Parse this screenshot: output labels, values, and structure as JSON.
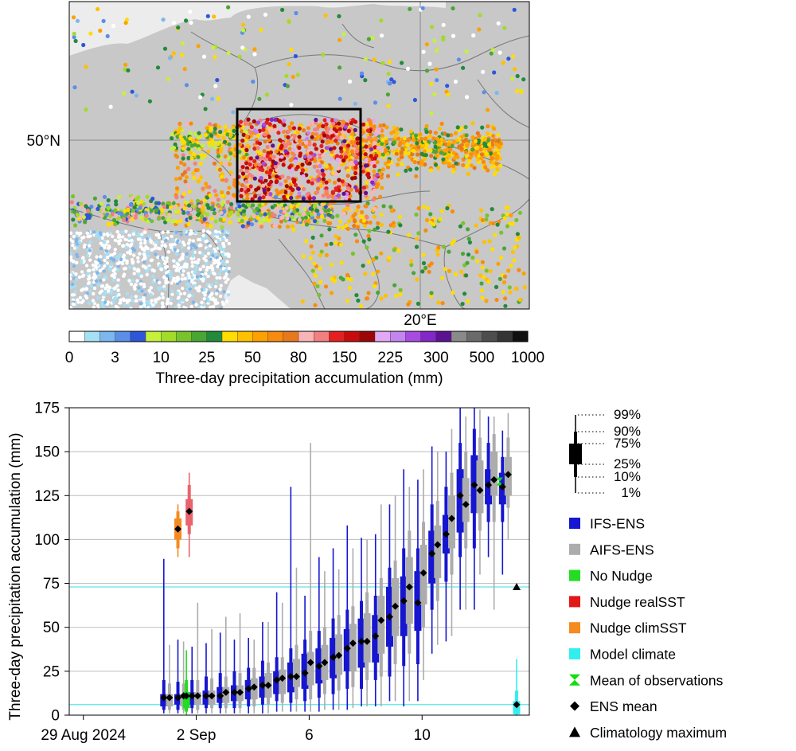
{
  "map": {
    "lat_label": "50°N",
    "lon_label": "20°E",
    "colorbar": {
      "title": "Three-day precipitation accumulation (mm)",
      "tick_labels": [
        "0",
        "3",
        "10",
        "25",
        "50",
        "80",
        "150",
        "225",
        "300",
        "500",
        "1000"
      ],
      "colors": [
        "#ffffff",
        "#a5e0f5",
        "#7db7ef",
        "#5a8ee8",
        "#2e56d8",
        "#c6f03c",
        "#a2db2a",
        "#78c32a",
        "#4aa634",
        "#238a3c",
        "#ffdd00",
        "#ffc000",
        "#fca100",
        "#f98a10",
        "#e8781c",
        "#f9b5b5",
        "#f28080",
        "#e42020",
        "#c80b0b",
        "#9c0606",
        "#e3a8f5",
        "#c684f0",
        "#a84be0",
        "#8426c8",
        "#5d1292",
        "#8a8a8a",
        "#6a6a6a",
        "#4e4e4e",
        "#353535",
        "#111111"
      ]
    }
  },
  "chart_data": {
    "type": "box",
    "ylabel": "Three-day precipitation accumulation (mm)",
    "ylim": [
      0,
      175
    ],
    "yticks": [
      0,
      25,
      50,
      75,
      100,
      125,
      150,
      175
    ],
    "xticks": [
      {
        "x": 0,
        "label": "29 Aug 2024"
      },
      {
        "x": 4,
        "label": "2 Sep"
      },
      {
        "x": 8,
        "label": "6"
      },
      {
        "x": 12,
        "label": "10"
      }
    ],
    "reference_lines": [
      73,
      6
    ],
    "legend_boxplot": [
      "99%",
      "90%",
      "75%",
      "25%",
      "10%",
      "1%"
    ],
    "legend": [
      {
        "label": "IFS-ENS",
        "color": "#1616d0",
        "marker": "square"
      },
      {
        "label": "AIFS-ENS",
        "color": "#acacac",
        "marker": "square"
      },
      {
        "label": "No Nudge",
        "color": "#22dd22",
        "marker": "square"
      },
      {
        "label": "Nudge realSST",
        "color": "#e01818",
        "marker": "square"
      },
      {
        "label": "Nudge climSST",
        "color": "#f58a1f",
        "marker": "square"
      },
      {
        "label": "Model climate",
        "color": "#33eeee",
        "marker": "square"
      },
      {
        "label": "Mean of observations",
        "color": "#11dd11",
        "marker": "hourglass"
      },
      {
        "label": "ENS mean",
        "color": "#000000",
        "marker": "diamond"
      },
      {
        "label": "Climatology maximum",
        "color": "#000000",
        "marker": "triangle"
      }
    ],
    "series": [
      {
        "name": "IFS-ENS",
        "color": "#1616d0",
        "boxes": [
          {
            "x": 2.85,
            "p1": 1,
            "p10": 3,
            "p25": 5,
            "p75": 12,
            "p90": 20,
            "p99": 89,
            "mean": 10
          },
          {
            "x": 3.35,
            "p1": 1,
            "p10": 3,
            "p25": 6,
            "p75": 12,
            "p90": 19,
            "p99": 43,
            "mean": 10
          },
          {
            "x": 3.85,
            "p1": 1,
            "p10": 4,
            "p25": 6,
            "p75": 13,
            "p90": 20,
            "p99": 39,
            "mean": 11
          },
          {
            "x": 4.35,
            "p1": 1,
            "p10": 4,
            "p25": 6,
            "p75": 14,
            "p90": 22,
            "p99": 41,
            "mean": 11
          },
          {
            "x": 4.85,
            "p1": 1,
            "p10": 4,
            "p25": 7,
            "p75": 16,
            "p90": 24,
            "p99": 47,
            "mean": 11
          },
          {
            "x": 5.35,
            "p1": 1,
            "p10": 4,
            "p25": 8,
            "p75": 17,
            "p90": 25,
            "p99": 43,
            "mean": 13
          },
          {
            "x": 5.85,
            "p1": 1,
            "p10": 5,
            "p25": 9,
            "p75": 20,
            "p90": 27,
            "p99": 44,
            "mean": 15
          },
          {
            "x": 6.35,
            "p1": 1,
            "p10": 6,
            "p25": 10,
            "p75": 22,
            "p90": 31,
            "p99": 53,
            "mean": 17
          },
          {
            "x": 6.85,
            "p1": 2,
            "p10": 8,
            "p25": 12,
            "p75": 25,
            "p90": 33,
            "p99": 70,
            "mean": 20
          },
          {
            "x": 7.35,
            "p1": 2,
            "p10": 7,
            "p25": 13,
            "p75": 30,
            "p90": 38,
            "p99": 130,
            "mean": 22
          },
          {
            "x": 7.85,
            "p1": 2,
            "p10": 8,
            "p25": 15,
            "p75": 35,
            "p90": 43,
            "p99": 68,
            "mean": 24
          },
          {
            "x": 8.35,
            "p1": 2,
            "p10": 10,
            "p25": 18,
            "p75": 38,
            "p90": 48,
            "p99": 90,
            "mean": 28
          },
          {
            "x": 8.85,
            "p1": 3,
            "p10": 12,
            "p25": 21,
            "p75": 44,
            "p90": 55,
            "p99": 95,
            "mean": 33
          },
          {
            "x": 9.35,
            "p1": 3,
            "p10": 15,
            "p25": 25,
            "p75": 49,
            "p90": 60,
            "p99": 108,
            "mean": 38
          },
          {
            "x": 9.85,
            "p1": 5,
            "p10": 15,
            "p25": 27,
            "p75": 55,
            "p90": 65,
            "p99": 101,
            "mean": 42
          },
          {
            "x": 10.35,
            "p1": 5,
            "p10": 20,
            "p25": 30,
            "p75": 57,
            "p90": 68,
            "p99": 103,
            "mean": 45
          },
          {
            "x": 10.85,
            "p1": 8,
            "p10": 22,
            "p25": 39,
            "p75": 73,
            "p90": 84,
            "p99": 120,
            "mean": 56
          },
          {
            "x": 11.35,
            "p1": 5,
            "p10": 28,
            "p25": 45,
            "p75": 79,
            "p90": 95,
            "p99": 140,
            "mean": 65
          },
          {
            "x": 11.85,
            "p1": 8,
            "p10": 29,
            "p25": 48,
            "p75": 82,
            "p90": 95,
            "p99": 134,
            "mean": 64
          },
          {
            "x": 12.35,
            "p1": 35,
            "p10": 60,
            "p25": 75,
            "p75": 105,
            "p90": 120,
            "p99": 153,
            "mean": 92
          },
          {
            "x": 12.85,
            "p1": 42,
            "p10": 76,
            "p25": 92,
            "p75": 114,
            "p90": 130,
            "p99": 150,
            "mean": 103
          },
          {
            "x": 13.35,
            "p1": 60,
            "p10": 90,
            "p25": 104,
            "p75": 140,
            "p90": 155,
            "p99": 175,
            "mean": 125
          },
          {
            "x": 13.85,
            "p1": 60,
            "p10": 95,
            "p25": 115,
            "p75": 148,
            "p90": 163,
            "p99": 175,
            "mean": 131
          },
          {
            "x": 14.35,
            "p1": 90,
            "p10": 110,
            "p25": 120,
            "p75": 140,
            "p90": 155,
            "p99": 170,
            "mean": 131
          },
          {
            "x": 14.85,
            "p1": 80,
            "p10": 110,
            "p25": 120,
            "p75": 138,
            "p90": 147,
            "p99": 162,
            "mean": 130
          }
        ]
      },
      {
        "name": "AIFS-ENS",
        "color": "#acacac",
        "boxes": [
          {
            "x": 3.05,
            "p1": 1,
            "p10": 3,
            "p25": 5,
            "p75": 12,
            "p90": 18,
            "p99": 40,
            "mean": 10
          },
          {
            "x": 3.55,
            "p1": 1,
            "p10": 3,
            "p25": 5,
            "p75": 12,
            "p90": 18,
            "p99": 42,
            "mean": 11
          },
          {
            "x": 4.05,
            "p1": 1,
            "p10": 3,
            "p25": 6,
            "p75": 13,
            "p90": 20,
            "p99": 64,
            "mean": 11
          },
          {
            "x": 4.55,
            "p1": 1,
            "p10": 4,
            "p25": 6,
            "p75": 14,
            "p90": 21,
            "p99": 49,
            "mean": 11
          },
          {
            "x": 5.05,
            "p1": 1,
            "p10": 4,
            "p25": 7,
            "p75": 16,
            "p90": 22,
            "p99": 56,
            "mean": 13
          },
          {
            "x": 5.55,
            "p1": 1,
            "p10": 4,
            "p25": 8,
            "p75": 17,
            "p90": 24,
            "p99": 58,
            "mean": 13
          },
          {
            "x": 6.05,
            "p1": 1,
            "p10": 5,
            "p25": 9,
            "p75": 21,
            "p90": 27,
            "p99": 43,
            "mean": 16
          },
          {
            "x": 6.55,
            "p1": 1,
            "p10": 6,
            "p25": 10,
            "p75": 24,
            "p90": 30,
            "p99": 53,
            "mean": 17
          },
          {
            "x": 7.05,
            "p1": 2,
            "p10": 7,
            "p25": 12,
            "p75": 26,
            "p90": 33,
            "p99": 64,
            "mean": 21
          },
          {
            "x": 7.55,
            "p1": 2,
            "p10": 9,
            "p25": 16,
            "p75": 32,
            "p90": 40,
            "p99": 84,
            "mean": 22
          },
          {
            "x": 8.05,
            "p1": 2,
            "p10": 9,
            "p25": 17,
            "p75": 36,
            "p90": 48,
            "p99": 155,
            "mean": 30
          },
          {
            "x": 8.55,
            "p1": 3,
            "p10": 12,
            "p25": 20,
            "p75": 40,
            "p90": 50,
            "p99": 82,
            "mean": 30
          },
          {
            "x": 9.05,
            "p1": 3,
            "p10": 14,
            "p25": 23,
            "p75": 46,
            "p90": 57,
            "p99": 83,
            "mean": 34
          },
          {
            "x": 9.55,
            "p1": 4,
            "p10": 16,
            "p25": 25,
            "p75": 52,
            "p90": 62,
            "p99": 95,
            "mean": 41
          },
          {
            "x": 10.05,
            "p1": 5,
            "p10": 20,
            "p25": 30,
            "p75": 58,
            "p90": 70,
            "p99": 100,
            "mean": 42
          },
          {
            "x": 10.55,
            "p1": 5,
            "p10": 22,
            "p25": 35,
            "p75": 68,
            "p90": 78,
            "p99": 120,
            "mean": 54
          },
          {
            "x": 11.05,
            "p1": 8,
            "p10": 29,
            "p25": 45,
            "p75": 78,
            "p90": 88,
            "p99": 125,
            "mean": 62
          },
          {
            "x": 11.55,
            "p1": 8,
            "p10": 35,
            "p25": 52,
            "p75": 90,
            "p90": 105,
            "p99": 130,
            "mean": 73
          },
          {
            "x": 12.05,
            "p1": 20,
            "p10": 50,
            "p25": 63,
            "p75": 97,
            "p90": 110,
            "p99": 140,
            "mean": 81
          },
          {
            "x": 12.55,
            "p1": 40,
            "p10": 65,
            "p25": 78,
            "p75": 108,
            "p90": 122,
            "p99": 150,
            "mean": 97
          },
          {
            "x": 13.05,
            "p1": 45,
            "p10": 80,
            "p25": 95,
            "p75": 125,
            "p90": 138,
            "p99": 163,
            "mean": 112
          },
          {
            "x": 13.55,
            "p1": 60,
            "p10": 95,
            "p25": 110,
            "p75": 135,
            "p90": 150,
            "p99": 170,
            "mean": 120
          },
          {
            "x": 14.05,
            "p1": 80,
            "p10": 105,
            "p25": 115,
            "p75": 145,
            "p90": 158,
            "p99": 174,
            "mean": 128
          },
          {
            "x": 14.55,
            "p1": 60,
            "p10": 110,
            "p25": 125,
            "p75": 150,
            "p90": 160,
            "p99": 170,
            "mean": 134
          },
          {
            "x": 15.05,
            "p1": 100,
            "p10": 118,
            "p25": 125,
            "p75": 147,
            "p90": 158,
            "p99": 172,
            "mean": 137
          }
        ]
      },
      {
        "name": "Nudge climSST",
        "color": "#f58a1f",
        "boxes": [
          {
            "x": 3.35,
            "p1": 90,
            "p10": 95,
            "p25": 100,
            "p75": 112,
            "p90": 116,
            "p99": 120,
            "mean": 106
          }
        ]
      },
      {
        "name": "Nudge realSST",
        "color": "#e8636b",
        "boxes": [
          {
            "x": 3.75,
            "p1": 90,
            "p10": 103,
            "p25": 108,
            "p75": 123,
            "p90": 131,
            "p99": 138,
            "mean": 116
          }
        ]
      },
      {
        "name": "No Nudge",
        "color": "#22dd22",
        "boxes": [
          {
            "x": 3.65,
            "p1": 0,
            "p10": 2,
            "p25": 4,
            "p75": 13,
            "p90": 20,
            "p99": 37,
            "mean": 11
          }
        ]
      },
      {
        "name": "Model climate",
        "color": "#33eeee",
        "boxes": [
          {
            "x": 15.35,
            "p1": 0,
            "p10": 0,
            "p25": 0.5,
            "p75": 8,
            "p90": 14,
            "p99": 32,
            "mean": 6
          }
        ]
      }
    ],
    "mean_of_observations": [
      {
        "x": 3.65,
        "value": 11
      },
      {
        "x": 14.75,
        "value": 133
      }
    ],
    "climatology_maximum": {
      "x": 15.35,
      "value": 73
    }
  }
}
